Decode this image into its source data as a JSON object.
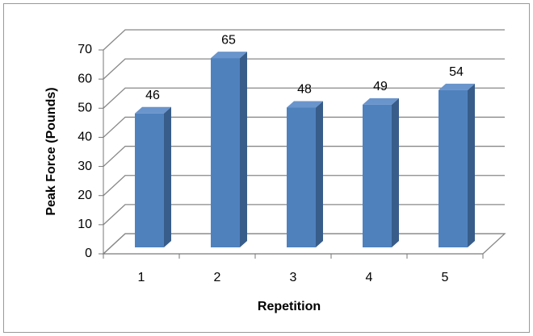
{
  "chart_data": {
    "type": "bar3d",
    "x_label": "Repetition",
    "y_label": "Peak Force (Pounds)",
    "categories": [
      "1",
      "2",
      "3",
      "4",
      "5"
    ],
    "values": [
      46,
      65,
      48,
      49,
      54
    ],
    "color": "#4f81bd",
    "ylim": [
      0,
      70
    ],
    "yticks": [
      0,
      10,
      20,
      30,
      40,
      50,
      60,
      70
    ],
    "grid": true
  }
}
